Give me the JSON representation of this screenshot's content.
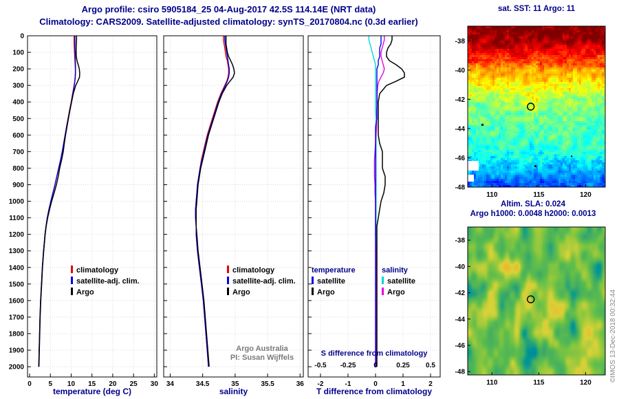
{
  "title": {
    "line1": "Argo profile: csiro 5905184_25 04-Aug-2017 42.5S 114.14E (NRT data)",
    "line2": "Climatology: CARS2009. Satellite-adjusted climatology: synTS_20170804.nc (0.3d earlier)"
  },
  "credit": "©IMOS 13-Dec-2018 00:32:44",
  "colors": {
    "title": "#00008b",
    "climatology": "#e60000",
    "satellite": "#0000e6",
    "argo": "#000000",
    "s_satellite": "#00d5d5",
    "s_argo": "#e600e6",
    "grid": "#d8d8d8"
  },
  "maps": {
    "sst": {
      "title": "sat. SST: 11 Argo: 11",
      "xticks": [
        110,
        115,
        120
      ],
      "yticks": [
        -38,
        -40,
        -42,
        -44,
        -46,
        -48
      ],
      "lon_range": [
        107.4,
        122.1
      ],
      "lat_range": [
        -37,
        -48
      ],
      "marker": {
        "lon": 114.14,
        "lat": -42.5
      }
    },
    "sla": {
      "caption1": "Altim. SLA: 0.024",
      "caption2": "Argo h1000: 0.0048 h2000: 0.0013",
      "xticks": [
        110,
        115,
        120
      ],
      "yticks": [
        -38,
        -40,
        -42,
        -44,
        -46,
        -48
      ],
      "lon_range": [
        107.4,
        122.1
      ],
      "lat_range": [
        -37,
        -48.25
      ],
      "marker": {
        "lon": 114.14,
        "lat": -42.5
      }
    }
  },
  "chart_data": [
    {
      "type": "line",
      "id": "temperature-profile",
      "xlabel": "temperature (deg C)",
      "ylabel": "",
      "xticks": [
        0,
        5,
        10,
        15,
        20,
        25,
        30
      ],
      "xlim": [
        -0.5,
        30.6
      ],
      "ylim": [
        0,
        2062
      ],
      "yticks": [
        0,
        100,
        200,
        300,
        400,
        500,
        600,
        700,
        800,
        900,
        1000,
        1100,
        1200,
        1300,
        1400,
        1500,
        1600,
        1700,
        1800,
        1900,
        2000
      ],
      "grid": true,
      "depths": [
        0,
        25,
        50,
        75,
        100,
        125,
        150,
        175,
        200,
        225,
        250,
        275,
        300,
        350,
        400,
        450,
        500,
        550,
        600,
        650,
        700,
        750,
        800,
        850,
        900,
        950,
        1000,
        1050,
        1100,
        1150,
        1200,
        1300,
        1400,
        1500,
        1600,
        1700,
        1800,
        1900,
        2000
      ],
      "series": [
        {
          "name": "climatology",
          "color_key": "climatology",
          "values": [
            10.7,
            10.7,
            10.7,
            10.75,
            10.8,
            10.85,
            10.9,
            10.95,
            11.0,
            11.0,
            10.95,
            10.85,
            10.7,
            10.35,
            10.0,
            9.6,
            9.25,
            8.9,
            8.55,
            8.2,
            7.85,
            7.45,
            7.0,
            6.55,
            6.1,
            5.6,
            5.1,
            4.65,
            4.25,
            3.95,
            3.7,
            3.35,
            3.05,
            2.85,
            2.65,
            2.5,
            2.4,
            2.3,
            2.2
          ]
        },
        {
          "name": "satellite-adj. clim.",
          "color_key": "satellite",
          "values": [
            10.9,
            10.9,
            10.9,
            10.9,
            10.95,
            11.0,
            11.0,
            11.05,
            11.05,
            11.05,
            11.0,
            10.9,
            10.75,
            10.4,
            10.05,
            9.65,
            9.3,
            8.9,
            8.55,
            8.2,
            7.85,
            7.45,
            7.0,
            6.55,
            6.1,
            5.6,
            5.1,
            4.65,
            4.25,
            3.95,
            3.7,
            3.35,
            3.05,
            2.85,
            2.65,
            2.5,
            2.4,
            2.3,
            2.2
          ]
        },
        {
          "name": "Argo",
          "color_key": "argo",
          "values": [
            11.3,
            11.3,
            11.25,
            11.2,
            11.2,
            11.25,
            11.4,
            11.7,
            11.95,
            12.05,
            12.0,
            11.6,
            11.1,
            10.5,
            10.1,
            9.7,
            9.35,
            9.0,
            8.65,
            8.35,
            8.1,
            7.7,
            7.25,
            6.9,
            6.45,
            5.9,
            5.3,
            4.8,
            4.35,
            4.0,
            3.75,
            3.4,
            3.1,
            2.9,
            2.7,
            2.55,
            2.45,
            2.35,
            2.25
          ]
        }
      ]
    },
    {
      "type": "line",
      "id": "salinity-profile",
      "xlabel": "salinity",
      "ylabel": "",
      "xticks": [
        34,
        34.5,
        35,
        35.5,
        36
      ],
      "xlim": [
        33.9,
        36.05
      ],
      "ylim": [
        0,
        2062
      ],
      "yticks": [
        0,
        100,
        200,
        300,
        400,
        500,
        600,
        700,
        800,
        900,
        1000,
        1100,
        1200,
        1300,
        1400,
        1500,
        1600,
        1700,
        1800,
        1900,
        2000
      ],
      "grid": true,
      "footnote": [
        "Argo Australia",
        "PI: Susan Wijffels"
      ],
      "depths": [
        0,
        25,
        50,
        75,
        100,
        125,
        150,
        175,
        200,
        225,
        250,
        275,
        300,
        350,
        400,
        450,
        500,
        550,
        600,
        650,
        700,
        750,
        800,
        850,
        900,
        950,
        1000,
        1050,
        1100,
        1150,
        1200,
        1300,
        1400,
        1500,
        1600,
        1700,
        1800,
        1900,
        2000
      ],
      "series": [
        {
          "name": "climatology",
          "color_key": "climatology",
          "values": [
            34.82,
            34.82,
            34.83,
            34.84,
            34.85,
            34.86,
            34.88,
            34.89,
            34.9,
            34.9,
            34.89,
            34.87,
            34.84,
            34.78,
            34.73,
            34.69,
            34.65,
            34.61,
            34.57,
            34.54,
            34.51,
            34.48,
            34.46,
            34.44,
            34.42,
            34.41,
            34.4,
            34.39,
            34.39,
            34.4,
            34.4,
            34.42,
            34.45,
            34.48,
            34.51,
            34.53,
            34.55,
            34.57,
            34.59
          ]
        },
        {
          "name": "satellite-adj. clim.",
          "color_key": "satellite",
          "values": [
            34.84,
            34.84,
            34.85,
            34.86,
            34.87,
            34.88,
            34.89,
            34.9,
            34.91,
            34.91,
            34.9,
            34.88,
            34.85,
            34.79,
            34.74,
            34.7,
            34.66,
            34.62,
            34.58,
            34.55,
            34.52,
            34.49,
            34.46,
            34.44,
            34.42,
            34.41,
            34.4,
            34.39,
            34.39,
            34.4,
            34.4,
            34.42,
            34.45,
            34.48,
            34.51,
            34.53,
            34.55,
            34.57,
            34.59
          ]
        },
        {
          "name": "Argo",
          "color_key": "argo",
          "values": [
            34.86,
            34.86,
            34.86,
            34.87,
            34.88,
            34.9,
            34.93,
            34.96,
            34.98,
            34.99,
            34.97,
            34.92,
            34.87,
            34.8,
            34.75,
            34.71,
            34.67,
            34.63,
            34.59,
            34.56,
            34.53,
            34.5,
            34.47,
            34.45,
            34.43,
            34.42,
            34.41,
            34.4,
            34.4,
            34.4,
            34.41,
            34.43,
            34.46,
            34.49,
            34.52,
            34.54,
            34.56,
            34.58,
            34.6
          ]
        }
      ]
    },
    {
      "type": "line",
      "id": "difference-profile",
      "xlabel": "T difference from climatology",
      "ylabel": "",
      "xticks": [
        -2,
        -1,
        0,
        1,
        2
      ],
      "xlim": [
        -2.45,
        2.35
      ],
      "ylim": [
        0,
        2062
      ],
      "yticks": [
        0,
        100,
        200,
        300,
        400,
        500,
        600,
        700,
        800,
        900,
        1000,
        1100,
        1200,
        1300,
        1400,
        1500,
        1600,
        1700,
        1800,
        1900,
        2000
      ],
      "grid": true,
      "secondary": {
        "label": "S difference from climatology",
        "ticks": [
          -0.5,
          -0.25,
          0,
          0.25,
          0.5
        ],
        "scale": 4
      },
      "legend": {
        "col1_header": "temperature",
        "col2_header": "salinity",
        "col1": [
          {
            "label": "satellite",
            "color_key": "satellite"
          },
          {
            "label": "Argo",
            "color_key": "argo"
          }
        ],
        "col2": [
          {
            "label": "satellite",
            "color_key": "s_satellite"
          },
          {
            "label": "Argo",
            "color_key": "s_argo"
          }
        ]
      },
      "depths": [
        0,
        25,
        50,
        75,
        100,
        125,
        150,
        175,
        200,
        225,
        250,
        275,
        300,
        350,
        400,
        450,
        500,
        550,
        600,
        650,
        700,
        750,
        800,
        850,
        900,
        950,
        1000,
        1050,
        1100,
        1150,
        1200,
        1300,
        1400,
        1500,
        1600,
        1700,
        1800,
        1900,
        2000
      ],
      "series": [
        {
          "name": "salinity satellite",
          "color_key": "s_satellite",
          "axis": "s",
          "values": [
            -0.06,
            -0.06,
            -0.05,
            -0.04,
            -0.03,
            -0.02,
            -0.01,
            0,
            0,
            0,
            0,
            0,
            0,
            0,
            0,
            0,
            0.005,
            0.005,
            0.005,
            0.005,
            0.005,
            0.005,
            0.005,
            0.005,
            0.005,
            0.005,
            0.005,
            0.005,
            0.005,
            0.005,
            0.005,
            0.005,
            0.005,
            0.005,
            0.005,
            0.005,
            0.005,
            0.005,
            0.005
          ]
        },
        {
          "name": "salinity Argo",
          "color_key": "s_argo",
          "axis": "s",
          "values": [
            0.08,
            0.08,
            0.07,
            0.06,
            0.05,
            0.05,
            0.06,
            0.07,
            0.08,
            0.07,
            0.05,
            0.03,
            0.02,
            0.015,
            0.015,
            0.01,
            0.01,
            0.01,
            0.005,
            0,
            -0.005,
            -0.01,
            -0.01,
            -0.01,
            -0.005,
            -0.005,
            0,
            0,
            0,
            0,
            0,
            0.005,
            0.005,
            0.005,
            0.005,
            0.005,
            0.005,
            0.005,
            0.005
          ]
        },
        {
          "name": "temperature satellite",
          "color_key": "satellite",
          "values": [
            0.2,
            0.2,
            0.2,
            0.15,
            0.15,
            0.15,
            0.1,
            0.1,
            0.05,
            0.05,
            0.05,
            0.05,
            0.05,
            0.05,
            0.05,
            0.05,
            0.05,
            0,
            0,
            0,
            0,
            0,
            0,
            0,
            0,
            0,
            0,
            0,
            0,
            0,
            0,
            0,
            0,
            0,
            0,
            0,
            0,
            0,
            0
          ]
        },
        {
          "name": "temperature Argo",
          "color_key": "argo",
          "values": [
            0.6,
            0.6,
            0.55,
            0.45,
            0.4,
            0.4,
            0.5,
            0.75,
            0.95,
            1.05,
            1.05,
            0.75,
            0.4,
            0.15,
            0.1,
            0.1,
            0.1,
            0.1,
            0.1,
            0.15,
            0.25,
            0.25,
            0.25,
            0.35,
            0.35,
            0.3,
            0.2,
            0.15,
            0.1,
            0.05,
            0.05,
            0.05,
            0.05,
            0.05,
            0.05,
            0.05,
            0.05,
            0.05,
            0.05
          ]
        }
      ]
    }
  ]
}
